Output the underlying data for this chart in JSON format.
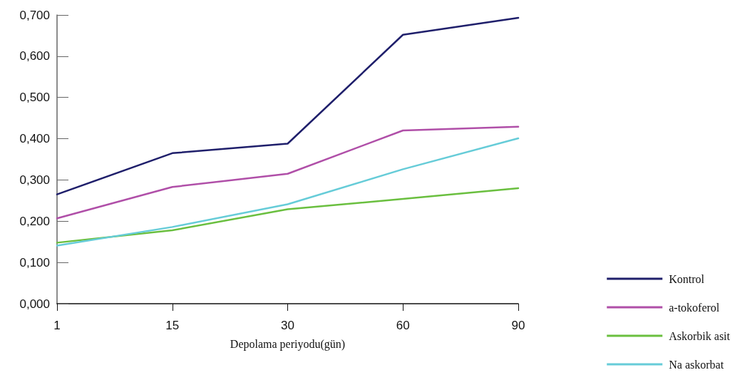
{
  "chart_data": {
    "type": "line",
    "xlabel": "Depolama periyodu(gün)",
    "categories": [
      "1",
      "15",
      "30",
      "60",
      "90"
    ],
    "series": [
      {
        "name": "Kontrol",
        "color": "#1f1f6b",
        "values": [
          0.265,
          0.365,
          0.388,
          0.652,
          0.693
        ]
      },
      {
        "name": "a-tokoferol",
        "color": "#b04fa8",
        "values": [
          0.207,
          0.283,
          0.315,
          0.42,
          0.429
        ]
      },
      {
        "name": "Askorbik asit",
        "color": "#6abf3f",
        "values": [
          0.148,
          0.178,
          0.229,
          0.254,
          0.28
        ]
      },
      {
        "name": "Na askorbat",
        "color": "#66ccd8",
        "values": [
          0.141,
          0.186,
          0.241,
          0.326,
          0.401
        ]
      }
    ],
    "ylim": [
      0,
      0.7
    ],
    "yticks": [
      {
        "value": 0,
        "label": "0,000"
      },
      {
        "value": 0.1,
        "label": "0,100"
      },
      {
        "value": 0.2,
        "label": "0,200"
      },
      {
        "value": 0.3,
        "label": "0,300"
      },
      {
        "value": 0.4,
        "label": "0,400"
      },
      {
        "value": 0.5,
        "label": "0,500"
      },
      {
        "value": 0.6,
        "label": "0,600"
      },
      {
        "value": 0.7,
        "label": "0,700"
      }
    ],
    "grid": false,
    "legend": "bottom right",
    "marker": "none",
    "line_style": "solid"
  }
}
